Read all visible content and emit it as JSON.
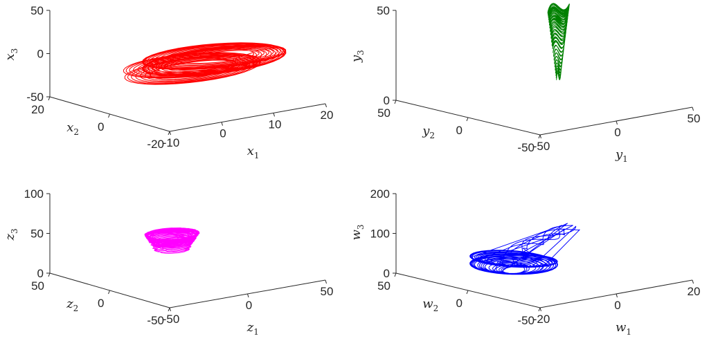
{
  "chart_data": [
    {
      "type": "line",
      "projection": "3d",
      "color": "#ff0000",
      "xlabel": {
        "base": "x",
        "sub": "1"
      },
      "ylabel": {
        "base": "x",
        "sub": "2"
      },
      "zlabel": {
        "base": "x",
        "sub": "3"
      },
      "xticks": [
        "-10",
        "0",
        "10",
        "20"
      ],
      "yticks": [
        "-20",
        "0",
        "20"
      ],
      "zticks": [
        "-50",
        "0",
        "50"
      ],
      "xlim": [
        -10,
        20
      ],
      "ylim": [
        -20,
        20
      ],
      "zlim": [
        -50,
        50
      ],
      "attractor": {
        "shape": "double-loop",
        "center": [
          8,
          0,
          -10
        ],
        "span": [
          14,
          10,
          4
        ]
      },
      "grid": false
    },
    {
      "type": "line",
      "projection": "3d",
      "color": "#008000",
      "xlabel": {
        "base": "y",
        "sub": "1"
      },
      "ylabel": {
        "base": "y",
        "sub": "2"
      },
      "zlabel": {
        "base": "y",
        "sub": "3"
      },
      "xticks": [
        "-50",
        "0",
        "50"
      ],
      "yticks": [
        "-50",
        "0",
        "50"
      ],
      "zticks": [
        "0",
        "50"
      ],
      "xlim": [
        -50,
        50
      ],
      "ylim": [
        -50,
        50
      ],
      "zlim": [
        0,
        50
      ],
      "attractor": {
        "shape": "wedge",
        "center": [
          0,
          10,
          40
        ],
        "span": [
          6,
          4,
          25
        ]
      },
      "grid": false
    },
    {
      "type": "line",
      "projection": "3d",
      "color": "#ff00ff",
      "xlabel": {
        "base": "z",
        "sub": "1"
      },
      "ylabel": {
        "base": "z",
        "sub": "2"
      },
      "zlabel": {
        "base": "z",
        "sub": "3"
      },
      "xticks": [
        "-50",
        "0",
        "50"
      ],
      "yticks": [
        "-50",
        "0",
        "50"
      ],
      "zticks": [
        "0",
        "50",
        "100"
      ],
      "xlim": [
        -50,
        50
      ],
      "ylim": [
        -50,
        50
      ],
      "zlim": [
        0,
        100
      ],
      "attractor": {
        "shape": "funnel",
        "center": [
          -10,
          0,
          40
        ],
        "span": [
          14,
          12,
          35
        ]
      },
      "grid": false
    },
    {
      "type": "line",
      "projection": "3d",
      "color": "#0000ff",
      "xlabel": {
        "base": "w",
        "sub": "1"
      },
      "ylabel": {
        "base": "w",
        "sub": "2"
      },
      "zlabel": {
        "base": "w",
        "sub": "3"
      },
      "xticks": [
        "-20",
        "0",
        "20"
      ],
      "yticks": [
        "-50",
        "0",
        "50"
      ],
      "zticks": [
        "0",
        "100",
        "200"
      ],
      "xlim": [
        -20,
        20
      ],
      "ylim": [
        -50,
        50
      ],
      "zlim": [
        0,
        200
      ],
      "attractor": {
        "shape": "blob-tail",
        "center": [
          -8,
          0,
          60
        ],
        "span": [
          10,
          22,
          40
        ]
      },
      "grid": false
    }
  ]
}
